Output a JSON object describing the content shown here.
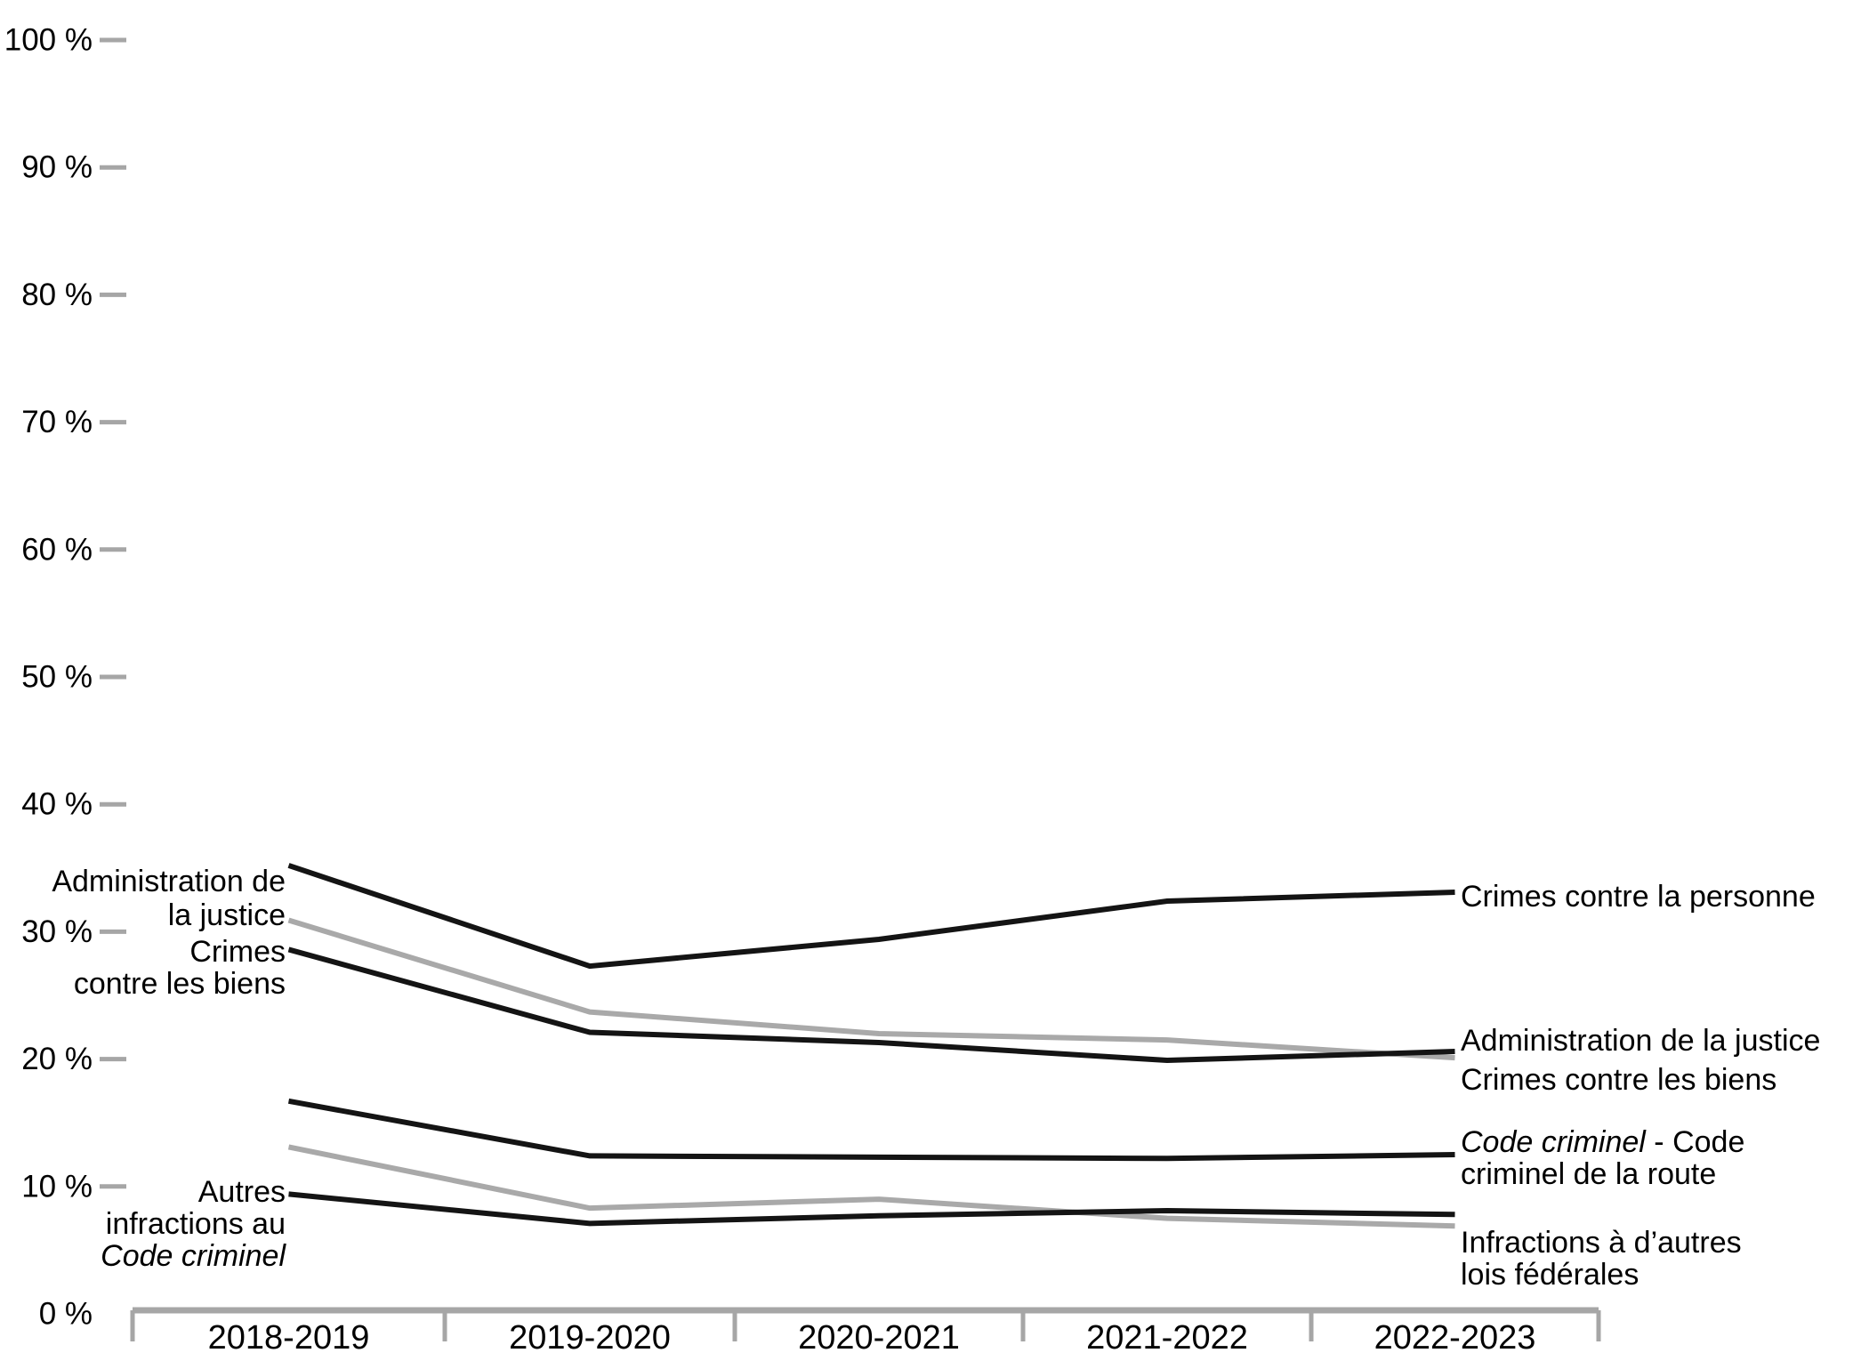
{
  "chart_data": {
    "type": "line",
    "categories": [
      "2018-2019",
      "2019-2020",
      "2020-2021",
      "2021-2022",
      "2022-2023"
    ],
    "series": [
      {
        "name": "Crimes contre la personne",
        "color": "#141414",
        "values": [
          35.2,
          27.3,
          29.4,
          32.4,
          33.1
        ]
      },
      {
        "name": "Administration de la justice",
        "color": "#A9A9A9",
        "values": [
          30.9,
          23.7,
          22.0,
          21.5,
          20.1
        ]
      },
      {
        "name": "Crimes contre les biens",
        "color": "#141414",
        "values": [
          28.6,
          22.1,
          21.3,
          19.9,
          20.6
        ]
      },
      {
        "name": "Code criminel - Code criminel de la route",
        "color": "#141414",
        "values": [
          16.7,
          12.4,
          12.3,
          12.2,
          12.5
        ]
      },
      {
        "name": "Infractions à d’autres lois fédérales",
        "color": "#A9A9A9",
        "values": [
          13.1,
          8.3,
          9.0,
          7.5,
          6.9
        ]
      },
      {
        "name": "Autres infractions au Code criminel",
        "color": "#141414",
        "values": [
          9.4,
          7.1,
          7.7,
          8.1,
          7.8
        ]
      }
    ],
    "title": "",
    "xlabel": "",
    "ylabel": "",
    "ylim": [
      0,
      100
    ],
    "ytick_step": 10,
    "grid": false,
    "legend_position": "inline-labels"
  },
  "y_axis": {
    "tick_labels": [
      "0 %",
      "10 %",
      "20 %",
      "30 %",
      "40 %",
      "50 %",
      "60 %",
      "70 %",
      "80 %",
      "90 %",
      "100 %"
    ]
  },
  "colors": {
    "axis": "#A6A6A6",
    "line_black": "#141414",
    "line_gray": "#A9A9A9",
    "text": "#000000"
  },
  "annotations": [
    {
      "id": "left-admin",
      "series": "Administration de la justice",
      "lines": [
        [
          {
            "t": "Administration de"
          }
        ],
        [
          {
            "t": "la justice"
          }
        ]
      ]
    },
    {
      "id": "left-biens",
      "series": "Crimes contre les biens",
      "lines": [
        [
          {
            "t": "Crimes"
          }
        ],
        [
          {
            "t": "contre les biens"
          }
        ]
      ]
    },
    {
      "id": "left-autres",
      "series": "Autres infractions au Code criminel",
      "lines": [
        [
          {
            "t": "Autres"
          }
        ],
        [
          {
            "t": "infractions au"
          }
        ],
        [
          {
            "t": "Code criminel",
            "i": true
          }
        ]
      ]
    },
    {
      "id": "right-personne",
      "series": "Crimes contre la personne",
      "lines": [
        [
          {
            "t": "Crimes contre la personne"
          }
        ]
      ]
    },
    {
      "id": "right-admin-biens",
      "series": "Administration de la justice / Crimes contre les biens",
      "lines": [
        [
          {
            "t": "Administration de la justice"
          }
        ],
        [
          {
            "t": "Crimes contre les biens"
          }
        ]
      ]
    },
    {
      "id": "right-route",
      "series": "Code criminel - Code criminel de la route",
      "lines": [
        [
          {
            "t": "Code criminel",
            "i": true
          },
          {
            "t": " - Code"
          }
        ],
        [
          {
            "t": "criminel de la route"
          }
        ]
      ]
    },
    {
      "id": "right-federales",
      "series": "Infractions à d’autres lois fédérales",
      "lines": [
        [
          {
            "t": "Infractions à d’autres"
          }
        ],
        [
          {
            "t": "lois fédérales"
          }
        ]
      ]
    }
  ]
}
